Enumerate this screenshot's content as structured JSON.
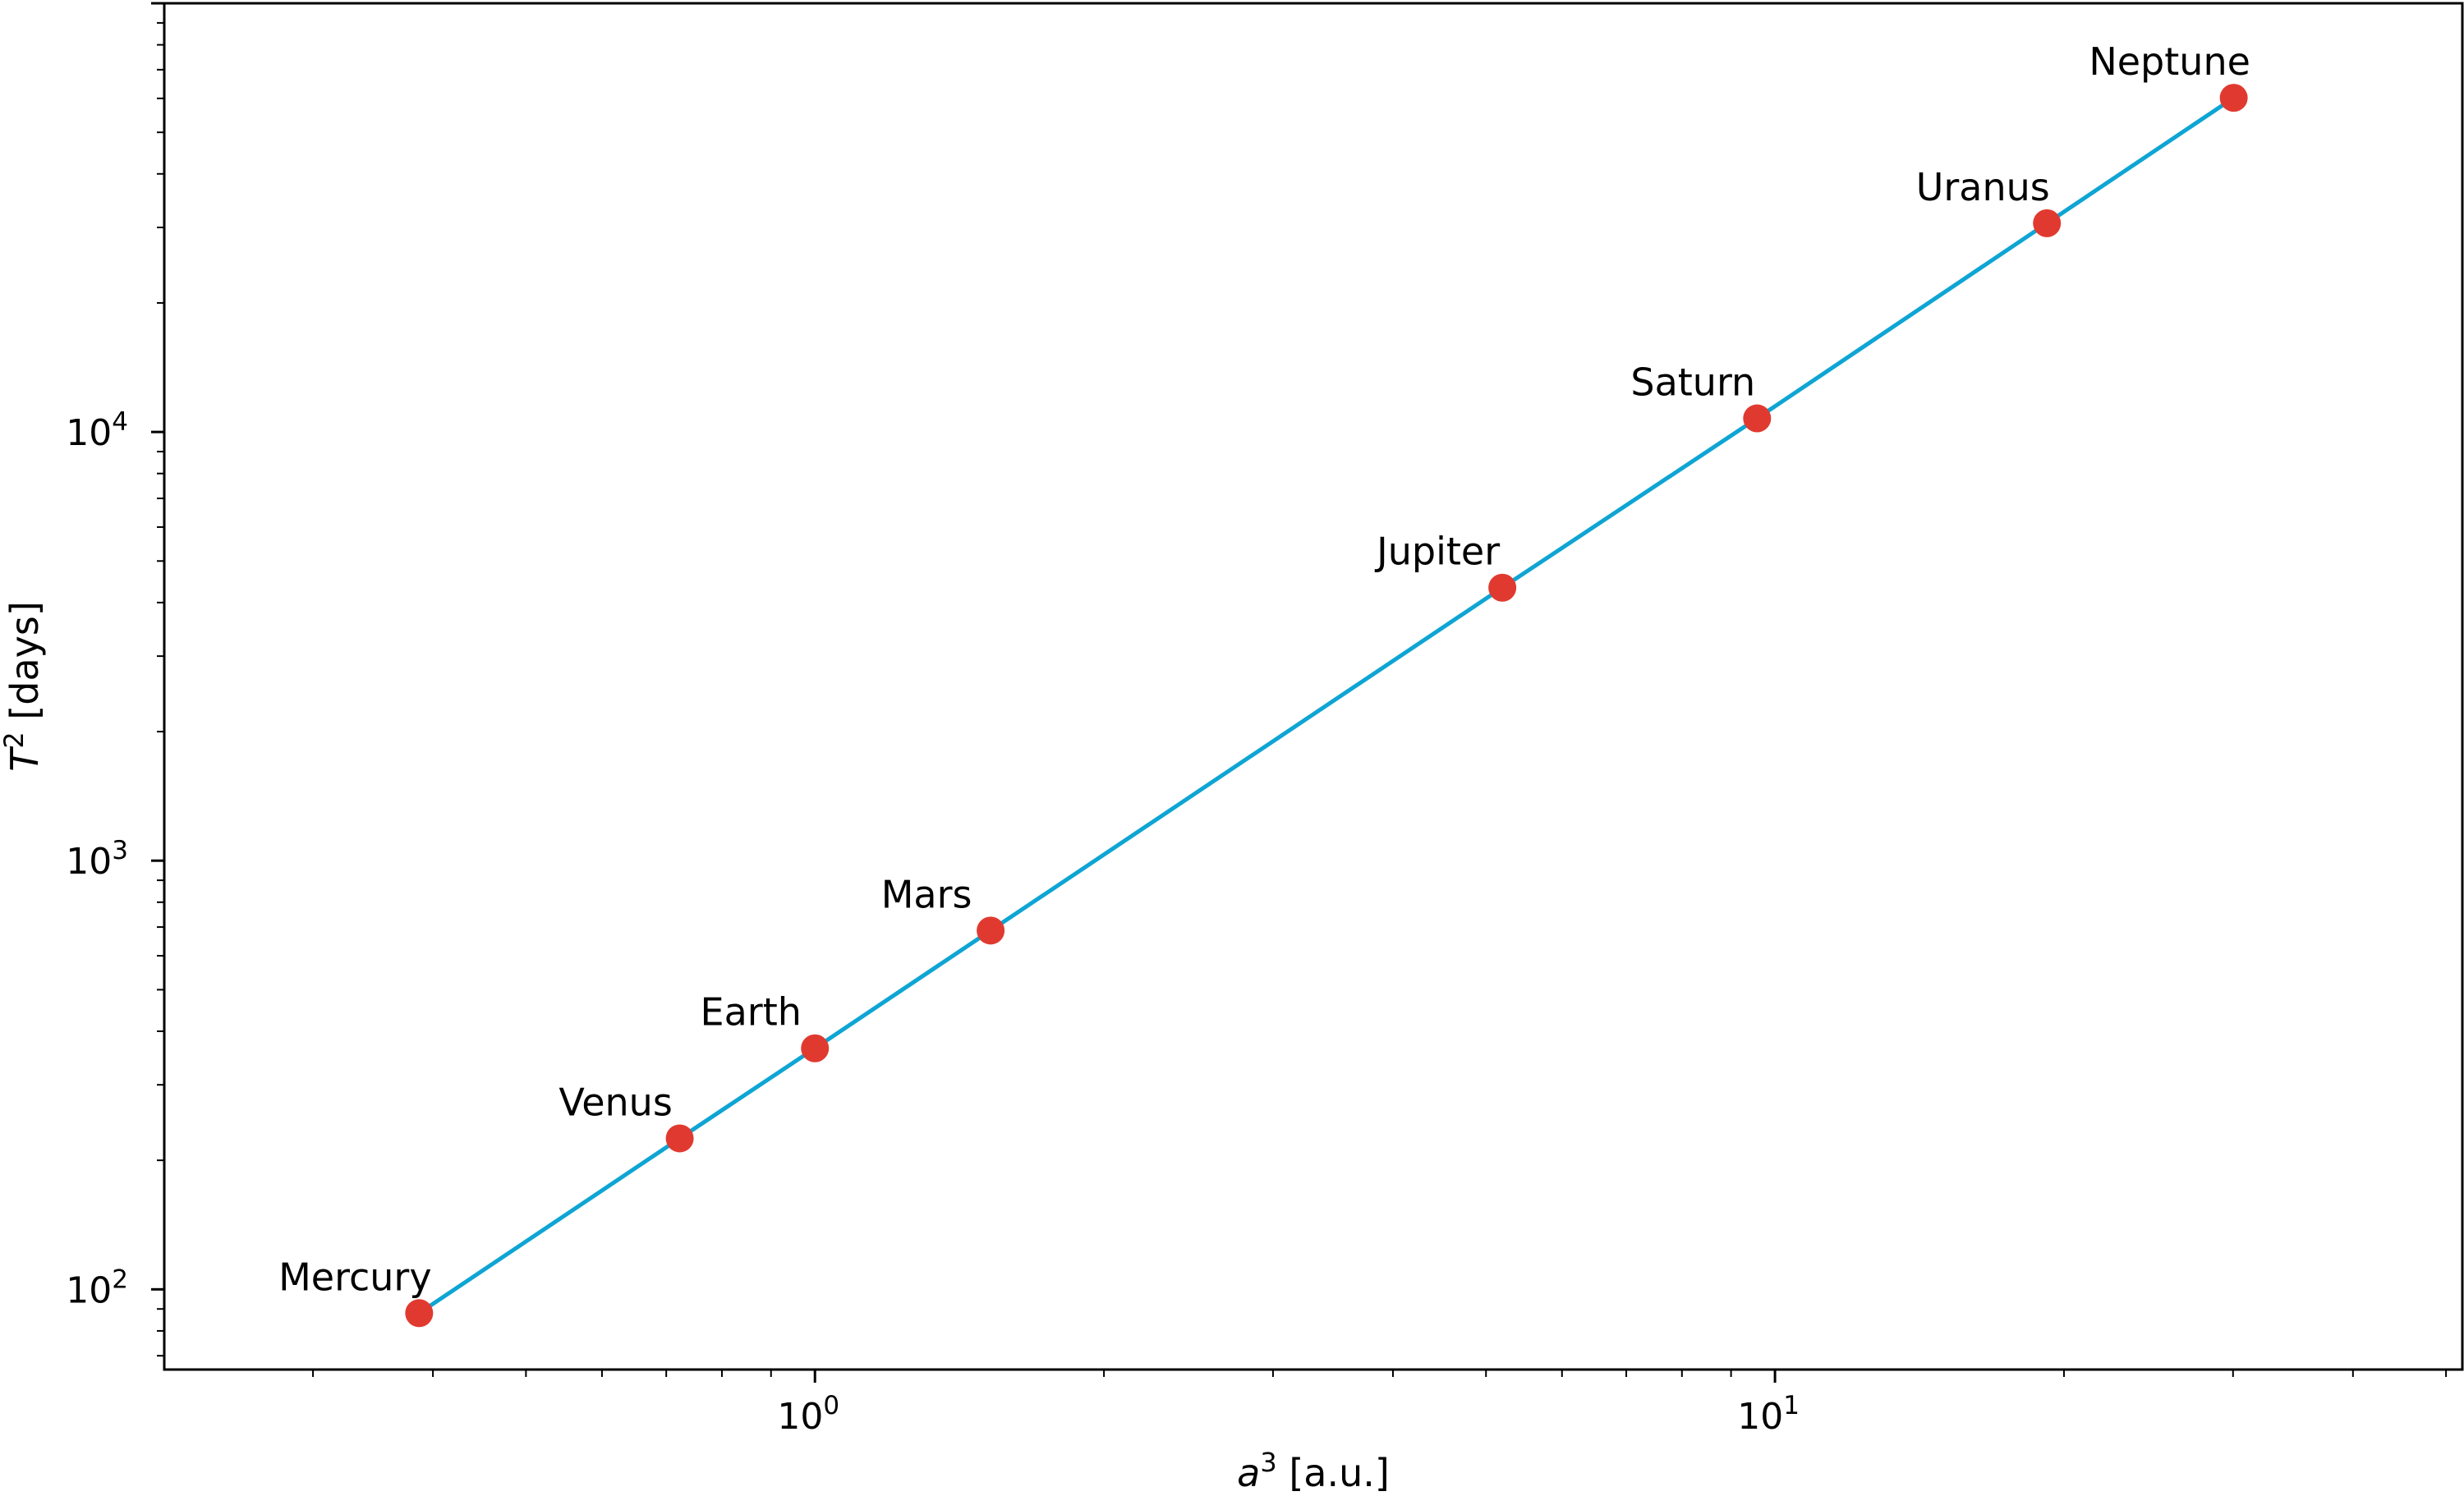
{
  "chart_data": {
    "type": "line",
    "title": "",
    "xlabel": {
      "var": "a",
      "exp": "3",
      "unit": " [a.u.]"
    },
    "ylabel": {
      "var": "T",
      "exp": "2",
      "unit": " [days]"
    },
    "xscale": "log",
    "yscale": "log",
    "xlim": [
      0.21,
      52
    ],
    "ylim": [
      65,
      100000
    ],
    "grid": false,
    "x_major_ticks": [
      {
        "base": "10",
        "exp": "0",
        "value": 1
      },
      {
        "base": "10",
        "exp": "1",
        "value": 10
      }
    ],
    "y_major_ticks": [
      {
        "base": "10",
        "exp": "2",
        "value": 100
      },
      {
        "base": "10",
        "exp": "3",
        "value": 1000
      },
      {
        "base": "10",
        "exp": "4",
        "value": 10000
      }
    ],
    "line_color": "#0ea5d4",
    "marker_color": "#e03a30",
    "series": [
      {
        "points": [
          {
            "label": "Mercury",
            "x": 0.387,
            "y": 88
          },
          {
            "label": "Venus",
            "x": 0.723,
            "y": 225
          },
          {
            "label": "Earth",
            "x": 1.0,
            "y": 365
          },
          {
            "label": "Mars",
            "x": 1.524,
            "y": 687
          },
          {
            "label": "Jupiter",
            "x": 5.2,
            "y": 4333
          },
          {
            "label": "Saturn",
            "x": 9.58,
            "y": 10759
          },
          {
            "label": "Uranus",
            "x": 19.2,
            "y": 30687
          },
          {
            "label": "Neptune",
            "x": 30.05,
            "y": 60190
          }
        ]
      }
    ]
  }
}
